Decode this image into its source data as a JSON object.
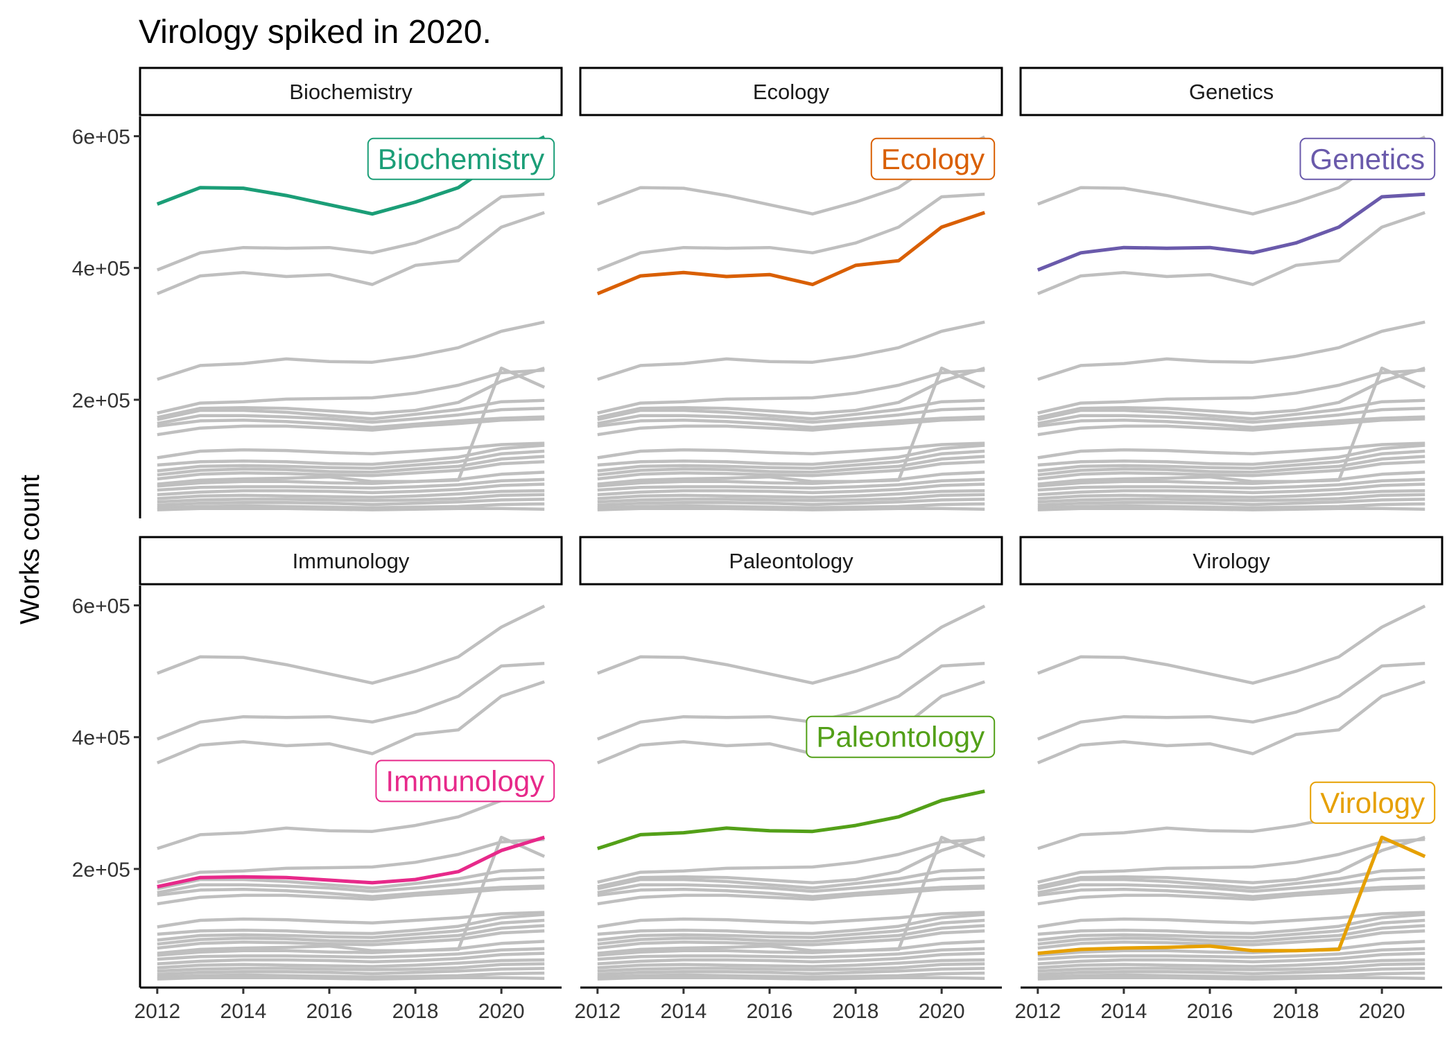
{
  "chart_data": {
    "type": "line",
    "title": "Virology spiked in 2020.",
    "xlabel": "",
    "ylabel": "Works count",
    "x": [
      2012,
      2013,
      2014,
      2015,
      2016,
      2017,
      2018,
      2019,
      2020,
      2021
    ],
    "xticks": [
      2012,
      2014,
      2016,
      2018,
      2020
    ],
    "xlim": [
      2011.6,
      2021.4
    ],
    "ylim": [
      20000,
      630000
    ],
    "yticks": [
      {
        "value": 200000,
        "label": "2e+05"
      },
      {
        "value": 400000,
        "label": "4e+05"
      },
      {
        "value": 600000,
        "label": "6e+05"
      }
    ],
    "background_color": "#bfbfbf",
    "background_series": [
      {
        "values": [
          497000,
          522000,
          521000,
          510000,
          496000,
          482000,
          500000,
          522000,
          567000,
          599000
        ]
      },
      {
        "values": [
          397000,
          423000,
          431000,
          430000,
          431000,
          423000,
          438000,
          462000,
          508000,
          512000
        ]
      },
      {
        "values": [
          361000,
          388000,
          393000,
          387000,
          390000,
          375000,
          404000,
          411000,
          462000,
          484000
        ]
      },
      {
        "values": [
          231000,
          252000,
          255000,
          262000,
          258000,
          257000,
          266000,
          279000,
          304000,
          318000
        ]
      },
      {
        "values": [
          173000,
          187000,
          188000,
          187000,
          183000,
          179000,
          184000,
          196000,
          228000,
          248000
        ]
      },
      {
        "values": [
          180000,
          195000,
          197000,
          201000,
          202000,
          203000,
          210000,
          222000,
          241000,
          245000
        ]
      },
      {
        "values": [
          170000,
          184000,
          184000,
          181000,
          176000,
          171000,
          178000,
          185000,
          197000,
          199000
        ]
      },
      {
        "values": [
          164000,
          176000,
          176000,
          174000,
          171000,
          166000,
          171000,
          177000,
          185000,
          187000
        ]
      },
      {
        "values": [
          160000,
          168000,
          169000,
          167000,
          163000,
          158000,
          163000,
          168000,
          172000,
          174000
        ]
      },
      {
        "values": [
          147000,
          157000,
          160000,
          160000,
          157000,
          154000,
          160000,
          164000,
          169000,
          171000
        ]
      },
      {
        "values": [
          112000,
          122000,
          124000,
          123000,
          120000,
          118000,
          122000,
          126000,
          132000,
          134000
        ]
      },
      {
        "values": [
          101000,
          106000,
          107000,
          106000,
          103000,
          102000,
          107000,
          113000,
          126000,
          131000
        ]
      },
      {
        "values": [
          92000,
          99000,
          100000,
          99000,
          97000,
          96000,
          101000,
          106000,
          118000,
          122000
        ]
      },
      {
        "values": [
          86000,
          93000,
          95000,
          94000,
          91000,
          90000,
          95000,
          99000,
          110000,
          114000
        ]
      },
      {
        "values": [
          80000,
          87000,
          89000,
          88000,
          86000,
          85000,
          89000,
          93000,
          103000,
          106000
        ]
      },
      {
        "values": [
          72000,
          78000,
          80000,
          81000,
          83000,
          76000,
          76000,
          78000,
          248000,
          219000
        ]
      },
      {
        "values": [
          69000,
          74000,
          76000,
          76000,
          74000,
          73000,
          76000,
          79000,
          87000,
          90000
        ]
      },
      {
        "values": [
          63000,
          67000,
          68000,
          68000,
          67000,
          66000,
          68000,
          71000,
          77000,
          79000
        ]
      },
      {
        "values": [
          56000,
          60000,
          62000,
          62000,
          61000,
          59000,
          61000,
          64000,
          70000,
          72000
        ]
      },
      {
        "values": [
          50000,
          54000,
          55000,
          54000,
          53000,
          52000,
          54000,
          57000,
          61000,
          62000
        ]
      },
      {
        "values": [
          45000,
          48000,
          49000,
          49000,
          48000,
          47000,
          48000,
          50000,
          55000,
          56000
        ]
      },
      {
        "values": [
          40000,
          43000,
          44000,
          44000,
          43000,
          41000,
          43000,
          45000,
          48000,
          49000
        ]
      },
      {
        "values": [
          36000,
          38000,
          39000,
          38000,
          37000,
          36000,
          37000,
          38000,
          41000,
          42000
        ]
      },
      {
        "values": [
          33000,
          35000,
          35000,
          35000,
          34000,
          33000,
          34000,
          35000,
          35000,
          34000
        ]
      }
    ],
    "panels": [
      {
        "name": "Biochemistry",
        "label": "Biochemistry",
        "color": "#1b9e77",
        "values": [
          497000,
          522000,
          521000,
          510000,
          496000,
          482000,
          500000,
          522000,
          567000,
          599000
        ],
        "annotation": {
          "x": 2021,
          "y": 565000,
          "text": "Biochemistry"
        }
      },
      {
        "name": "Ecology",
        "label": "Ecology",
        "color": "#d95f02",
        "values": [
          361000,
          388000,
          393000,
          387000,
          390000,
          375000,
          404000,
          411000,
          462000,
          484000
        ],
        "annotation": {
          "x": 2021,
          "y": 565000,
          "text": "Ecology"
        }
      },
      {
        "name": "Genetics",
        "label": "Genetics",
        "color": "#6a5aab",
        "values": [
          397000,
          423000,
          431000,
          430000,
          431000,
          423000,
          438000,
          462000,
          508000,
          512000
        ],
        "annotation": {
          "x": 2021,
          "y": 565000,
          "text": "Genetics"
        }
      },
      {
        "name": "Immunology",
        "label": "Immunology",
        "color": "#e7298a",
        "values": [
          173000,
          187000,
          188000,
          187000,
          183000,
          179000,
          184000,
          196000,
          228000,
          248000
        ],
        "annotation": {
          "x": 2021,
          "y": 333000,
          "text": "Immunology"
        }
      },
      {
        "name": "Paleontology",
        "label": "Paleontology",
        "color": "#53a018",
        "values": [
          231000,
          252000,
          255000,
          262000,
          258000,
          257000,
          266000,
          279000,
          304000,
          318000
        ],
        "annotation": {
          "x": 2021,
          "y": 400000,
          "text": "Paleontology"
        }
      },
      {
        "name": "Virology",
        "label": "Virology",
        "color": "#e6a000",
        "values": [
          72000,
          78000,
          80000,
          81000,
          83000,
          76000,
          76000,
          78000,
          248000,
          219000
        ],
        "annotation": {
          "x": 2021,
          "y": 300000,
          "text": "Virology"
        }
      }
    ]
  }
}
